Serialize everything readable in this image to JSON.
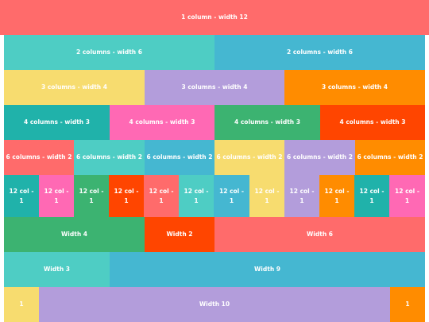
{
  "palette": {
    "red": "#ff6b6b",
    "teal": "#4ecdc4",
    "blue": "#45b7d1",
    "yellow": "#f7dc6f",
    "purple": "#b39ddb",
    "orange": "#ff8c00",
    "darkteal": "#20b2aa",
    "pink": "#ff69b4",
    "green": "#3cb371",
    "redorange": "#ff4500"
  },
  "rows": [
    {
      "cells": [
        {
          "label": "1 column - width 12",
          "color": "#ff6b6b"
        }
      ]
    },
    {
      "cells": [
        {
          "label": "2 columns - width 6",
          "color": "#4ecdc4"
        },
        {
          "label": "2 columns - width 6",
          "color": "#45b7d1"
        }
      ]
    },
    {
      "cells": [
        {
          "label": "3 columns - width 4",
          "color": "#f7dc6f"
        },
        {
          "label": "3 columns - width 4",
          "color": "#b39ddb"
        },
        {
          "label": "3 columns - width 4",
          "color": "#ff8c00"
        }
      ]
    },
    {
      "cells": [
        {
          "label": "4 columns - width 3",
          "color": "#20b2aa"
        },
        {
          "label": "4 columns - width 3",
          "color": "#ff69b4"
        },
        {
          "label": "4 columns - width 3",
          "color": "#3cb371"
        },
        {
          "label": "4 columns - width 3",
          "color": "#ff4500"
        }
      ]
    },
    {
      "cells": [
        {
          "label": "6 columns - width 2",
          "color": "#ff6b6b"
        },
        {
          "label": "6 columns - width 2",
          "color": "#4ecdc4"
        },
        {
          "label": "6 columns - width 2",
          "color": "#45b7d1"
        },
        {
          "label": "6 columns - width 2",
          "color": "#f7dc6f"
        },
        {
          "label": "6 columns - width 2",
          "color": "#b39ddb"
        },
        {
          "label": "6 columns - width 2",
          "color": "#ff8c00"
        }
      ]
    },
    {
      "cells": [
        {
          "label": "12 col - 1",
          "color": "#20b2aa"
        },
        {
          "label": "12 col - 1",
          "color": "#ff69b4"
        },
        {
          "label": "12 col - 1",
          "color": "#3cb371"
        },
        {
          "label": "12 col - 1",
          "color": "#ff4500"
        },
        {
          "label": "12 col - 1",
          "color": "#ff6b6b"
        },
        {
          "label": "12 col - 1",
          "color": "#4ecdc4"
        },
        {
          "label": "12 col - 1",
          "color": "#45b7d1"
        },
        {
          "label": "12 col - 1",
          "color": "#f7dc6f"
        },
        {
          "label": "12 col - 1",
          "color": "#b39ddb"
        },
        {
          "label": "12 col - 1",
          "color": "#ff8c00"
        },
        {
          "label": "12 col - 1",
          "color": "#20b2aa"
        },
        {
          "label": "12 col - 1",
          "color": "#ff69b4"
        }
      ]
    },
    {
      "cells": [
        {
          "label": "Width 4",
          "color": "#3cb371"
        },
        {
          "label": "Width 2",
          "color": "#ff4500"
        },
        {
          "label": "Width 6",
          "color": "#ff6b6b"
        }
      ]
    },
    {
      "cells": [
        {
          "label": "Width 3",
          "color": "#4ecdc4"
        },
        {
          "label": "Width 9",
          "color": "#45b7d1"
        }
      ]
    },
    {
      "cells": [
        {
          "label": "1",
          "color": "#f7dc6f"
        },
        {
          "label": "Width 10",
          "color": "#b39ddb"
        },
        {
          "label": "1",
          "color": "#ff8c00"
        }
      ]
    }
  ]
}
